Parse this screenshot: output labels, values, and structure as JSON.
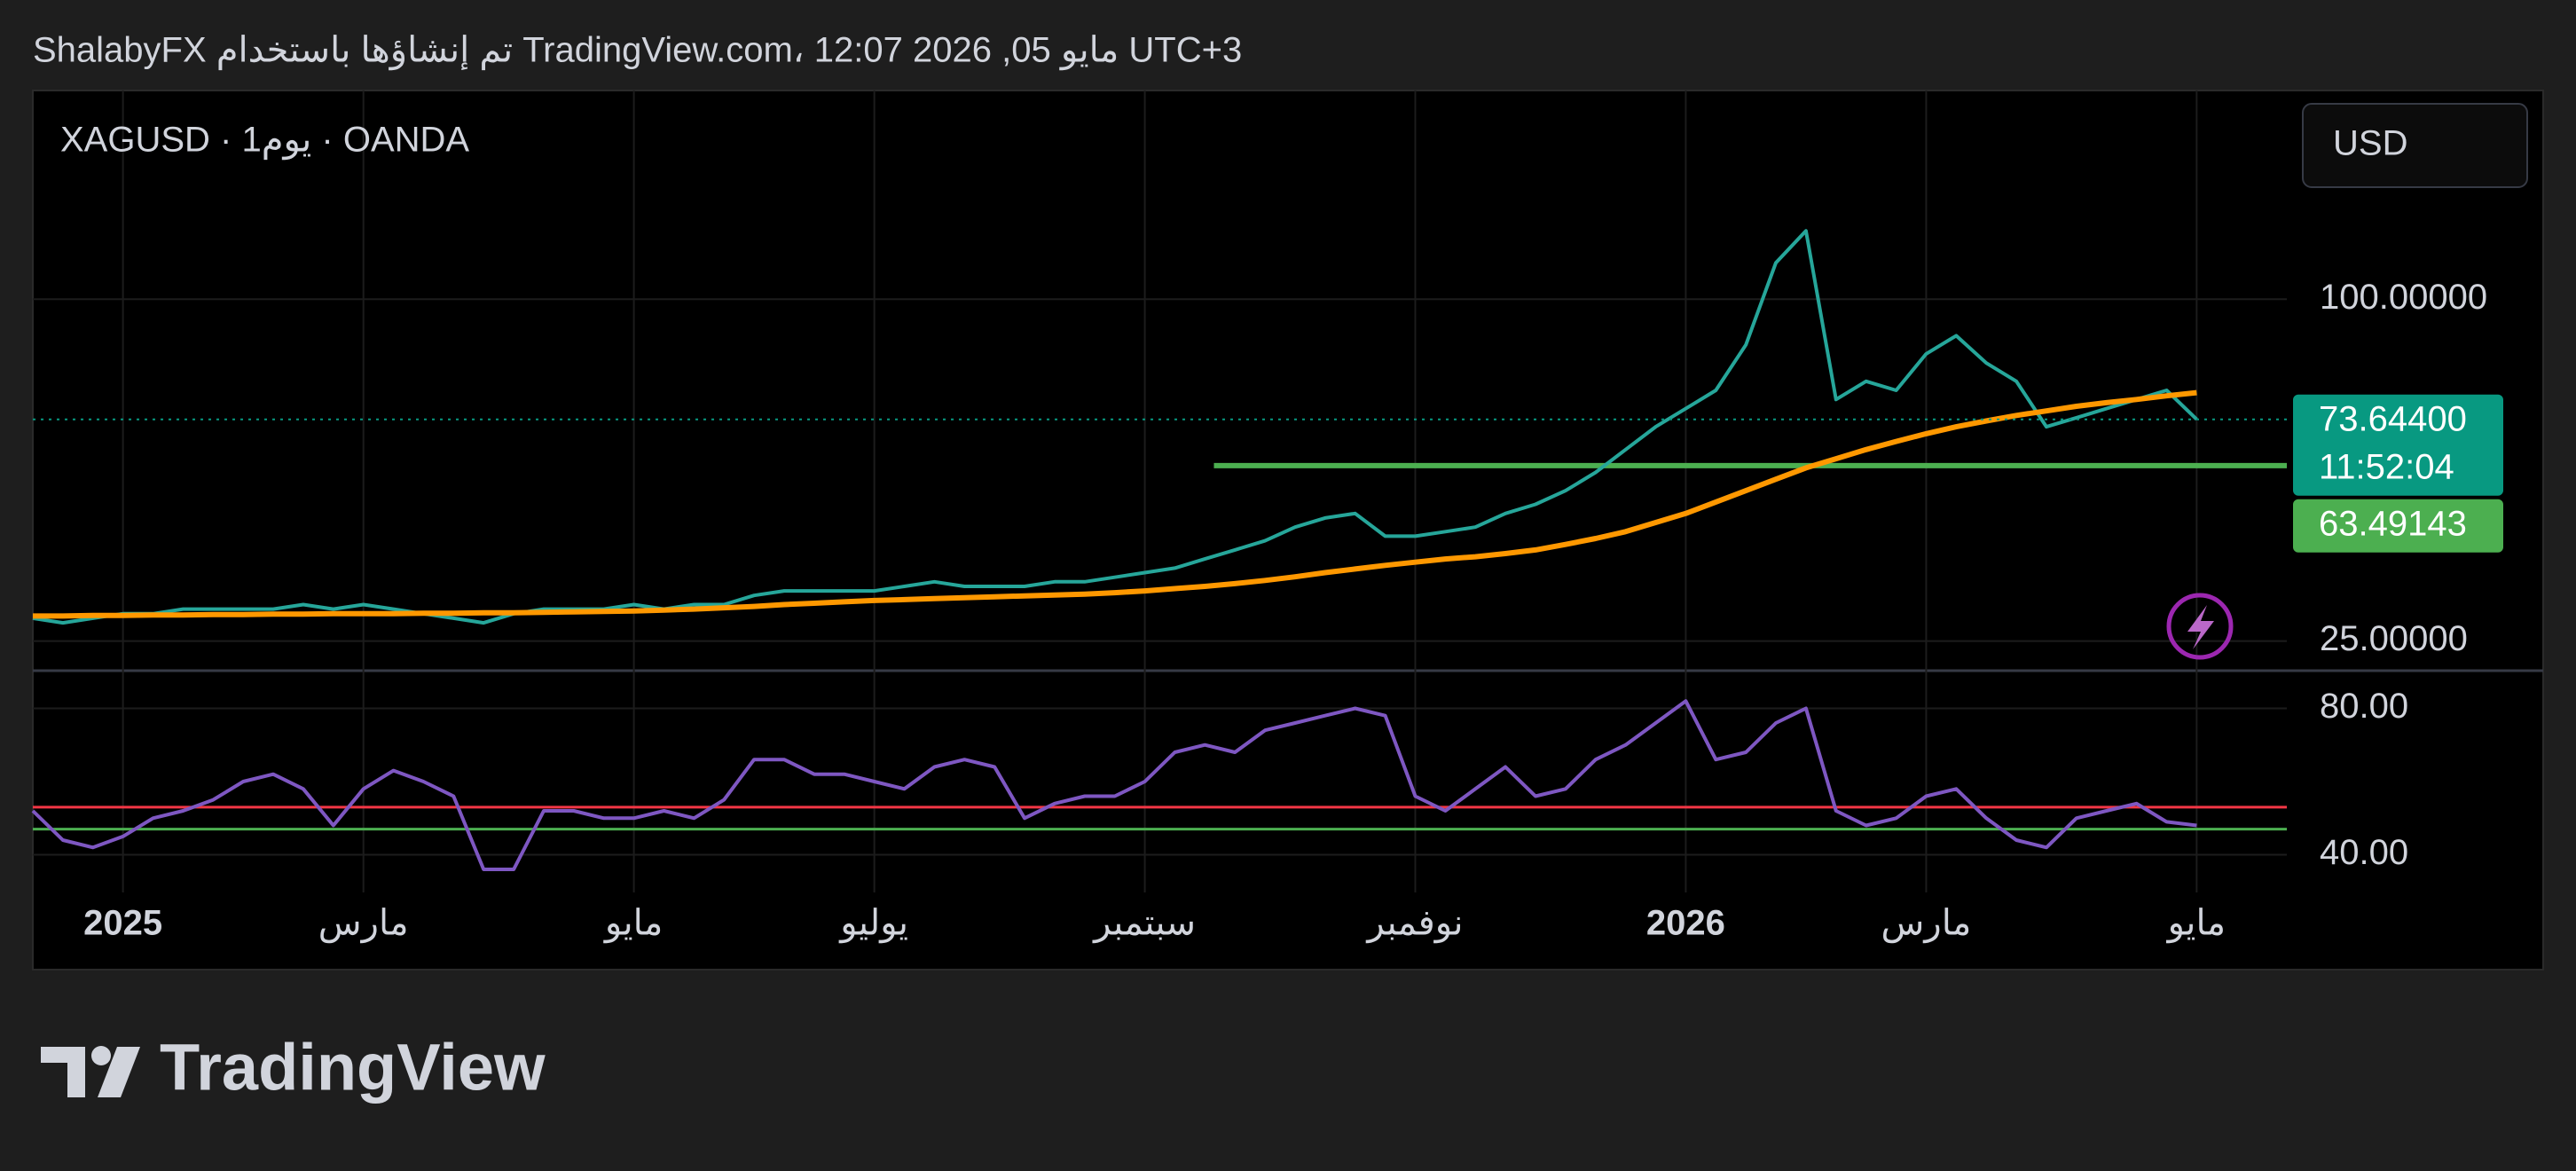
{
  "header": {
    "caption": "ShalabyFX تم إنشاؤها باستخدام TradingView.com، 12:07 2026 ,05 مايو UTC+3"
  },
  "footer": {
    "brand": "TradingView"
  },
  "chart_data": [
    {
      "type": "line",
      "title": "XAGUSD · 1يوم · OANDA",
      "currency": "USD",
      "categories": [
        null,
        null,
        null,
        "2025",
        null,
        null,
        null,
        null,
        null,
        null,
        null,
        "مارس",
        null,
        null,
        null,
        null,
        null,
        null,
        null,
        null,
        "مايو",
        null,
        null,
        null,
        null,
        null,
        null,
        null,
        "يوليو",
        null,
        null,
        null,
        null,
        null,
        null,
        null,
        null,
        "سبتمبر",
        null,
        null,
        null,
        null,
        null,
        null,
        null,
        null,
        "نوفمبر",
        null,
        null,
        null,
        null,
        null,
        null,
        null,
        null,
        "2026",
        null,
        null,
        null,
        null,
        null,
        null,
        null,
        "مارس",
        null,
        null,
        null,
        null,
        null,
        null,
        null,
        null,
        "مايو"
      ],
      "series": [
        {
          "color": "#26a69a",
          "values": [
            30,
            29,
            30,
            31,
            31,
            32,
            32,
            32,
            32,
            33,
            32,
            33,
            32,
            31,
            30,
            29,
            31,
            32,
            32,
            32,
            33,
            32,
            33,
            33,
            35,
            36,
            36,
            36,
            36,
            37,
            38,
            37,
            37,
            37,
            38,
            38,
            39,
            40,
            41,
            43,
            45,
            47,
            50,
            52,
            53,
            48,
            48,
            49,
            50,
            53,
            55,
            58,
            62,
            67,
            72,
            76,
            80,
            90,
            108,
            115,
            78,
            82,
            80,
            88,
            92,
            86,
            82,
            72,
            74,
            76,
            78,
            80,
            73.644
          ]
        },
        {
          "color": "#ff9800",
          "values": [
            30.5,
            30.5,
            30.6,
            30.6,
            30.7,
            30.7,
            30.8,
            30.8,
            30.9,
            30.9,
            31,
            31,
            31,
            31.1,
            31.1,
            31.2,
            31.2,
            31.3,
            31.4,
            31.5,
            31.6,
            31.8,
            32,
            32.3,
            32.6,
            33,
            33.3,
            33.6,
            33.9,
            34.1,
            34.3,
            34.5,
            34.7,
            34.9,
            35.1,
            35.3,
            35.6,
            36,
            36.5,
            37,
            37.6,
            38.3,
            39.1,
            40,
            40.8,
            41.6,
            42.3,
            43,
            43.5,
            44.2,
            45,
            46.2,
            47.5,
            49,
            51,
            53,
            55.5,
            58,
            60.5,
            63,
            65,
            67,
            68.8,
            70.5,
            72,
            73.3,
            74.5,
            75.5,
            76.5,
            77.3,
            78,
            78.8,
            79.5
          ]
        }
      ],
      "ylim": [
        18.5,
        145.8
      ],
      "yticks": [
        {
          "value": 25,
          "label": "25.00000"
        },
        {
          "value": 100,
          "label": "100.00000"
        }
      ],
      "last_price": {
        "value": 73.644,
        "label": "73.64400",
        "countdown": "11:52:04",
        "color": "#089981"
      },
      "level": {
        "value": 63.49143,
        "label": "63.49143",
        "color": "#4caf50"
      },
      "grid": true
    },
    {
      "type": "line",
      "series": [
        {
          "color": "#7e57c2",
          "values": [
            52,
            44,
            42,
            45,
            50,
            52,
            55,
            60,
            62,
            58,
            48,
            58,
            63,
            60,
            56,
            36,
            36,
            52,
            52,
            50,
            50,
            52,
            50,
            55,
            66,
            66,
            62,
            62,
            60,
            58,
            64,
            66,
            64,
            50,
            54,
            56,
            56,
            60,
            68,
            70,
            68,
            74,
            76,
            78,
            80,
            78,
            56,
            52,
            58,
            64,
            56,
            58,
            66,
            70,
            76,
            82,
            66,
            68,
            76,
            80,
            52,
            48,
            50,
            56,
            58,
            50,
            44,
            42,
            50,
            52,
            54,
            49,
            48
          ]
        }
      ],
      "ylim": [
        29.7,
        90.3
      ],
      "yticks": [
        {
          "value": 40,
          "label": "40.00"
        },
        {
          "value": 80,
          "label": "80.00"
        }
      ],
      "levels": [
        {
          "value": 53,
          "color": "#f23645"
        },
        {
          "value": 47,
          "color": "#4caf50"
        }
      ],
      "grid": true
    }
  ]
}
